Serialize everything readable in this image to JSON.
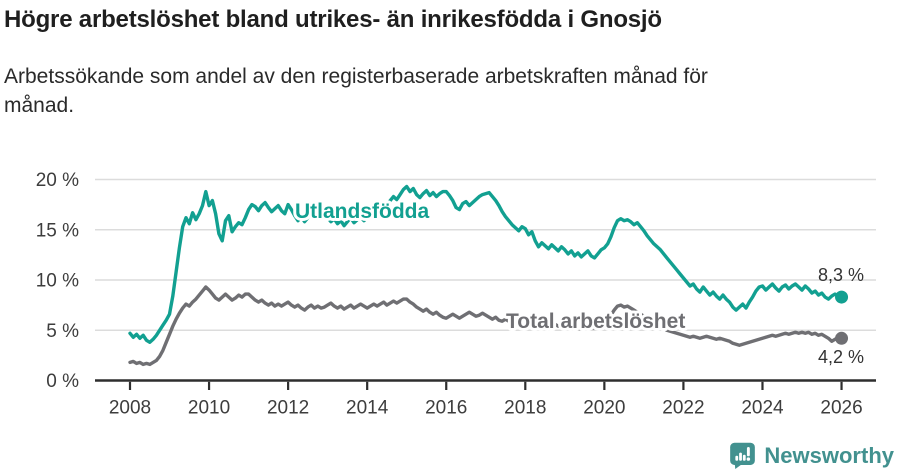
{
  "header": {
    "title": "Högre arbetslöshet bland utrikes- än inrikesfödda i Gnosjö",
    "subtitle_line1": "Arbetssökande som andel av den registerbaserade arbetskraften månad för",
    "subtitle_line2": "månad."
  },
  "footer": {
    "brand": "Newsworthy"
  },
  "colors": {
    "foreign_line": "#12A091",
    "total_line": "#6F6F73",
    "brand_teal": "#42918F",
    "grid": "#DCDCDC",
    "axis": "#2E2E2E",
    "tick_text": "#3D3D3D",
    "end_label_text": "#333333"
  },
  "chart_data": {
    "type": "line",
    "title": "Högre arbetslöshet bland utrikes- än inrikesfödda i Gnosjö",
    "subtitle": "Arbetssökande som andel av den registerbaserade arbetskraften månad för månad.",
    "x_unit": "year-month",
    "x_start_year": 2008,
    "x_end_year": 2026,
    "points_per_year": 12,
    "x_tick_labels": [
      "2008",
      "2010",
      "2012",
      "2014",
      "2016",
      "2018",
      "2020",
      "2022",
      "2024",
      "2026"
    ],
    "x_tick_years": [
      2008,
      2010,
      2012,
      2014,
      2016,
      2018,
      2020,
      2022,
      2024,
      2026
    ],
    "y_tick_labels": [
      "0 %",
      "5 %",
      "10 %",
      "15 %",
      "20 %"
    ],
    "y_tick_values": [
      0,
      5,
      10,
      15,
      20
    ],
    "ylim": [
      0,
      20
    ],
    "grid": true,
    "legend_position": "inline-labels",
    "series": [
      {
        "name": "Utlandsfödda",
        "color": "#12A091",
        "end_label": "8,3 %",
        "end_value": 8.3,
        "values": [
          4.7,
          4.3,
          4.6,
          4.2,
          4.5,
          4.0,
          3.8,
          4.1,
          4.5,
          5.0,
          5.5,
          6.0,
          6.6,
          8.4,
          10.8,
          13.2,
          15.3,
          16.2,
          15.6,
          16.7,
          16.0,
          16.6,
          17.4,
          18.8,
          17.4,
          17.9,
          16.6,
          14.6,
          13.9,
          15.9,
          16.4,
          14.8,
          15.3,
          15.7,
          15.5,
          16.2,
          17.0,
          17.5,
          17.3,
          16.9,
          17.4,
          17.7,
          17.2,
          16.8,
          17.1,
          17.4,
          16.9,
          16.6,
          17.5,
          17.0,
          16.4,
          15.9,
          16.3,
          15.8,
          16.2,
          16.6,
          16.1,
          16.5,
          17.0,
          16.6,
          16.2,
          15.8,
          16.1,
          15.6,
          15.9,
          15.4,
          15.8,
          16.2,
          15.7,
          16.0,
          16.3,
          15.9,
          16.2,
          16.6,
          17.0,
          16.7,
          17.2,
          17.7,
          17.4,
          17.9,
          18.3,
          18.0,
          18.5,
          19.0,
          19.3,
          18.8,
          19.1,
          18.5,
          18.2,
          18.6,
          18.9,
          18.4,
          18.7,
          18.3,
          18.6,
          18.8,
          18.8,
          18.4,
          17.9,
          17.2,
          17.0,
          17.6,
          17.8,
          17.4,
          17.7,
          18.0,
          18.3,
          18.5,
          18.6,
          18.7,
          18.3,
          17.9,
          17.4,
          16.8,
          16.3,
          15.9,
          15.5,
          15.2,
          14.9,
          15.3,
          15.1,
          14.5,
          14.8,
          13.9,
          13.3,
          13.7,
          13.4,
          13.1,
          13.5,
          13.2,
          12.9,
          13.3,
          13.0,
          12.6,
          12.9,
          12.4,
          12.7,
          12.3,
          12.6,
          12.9,
          12.4,
          12.2,
          12.6,
          13.0,
          13.2,
          13.6,
          14.3,
          15.2,
          15.9,
          16.1,
          15.9,
          16.0,
          15.8,
          15.5,
          15.7,
          15.3,
          14.9,
          14.4,
          14.0,
          13.6,
          13.3,
          13.0,
          12.6,
          12.2,
          11.8,
          11.4,
          11.0,
          10.6,
          10.2,
          9.8,
          9.4,
          9.6,
          9.1,
          8.8,
          9.3,
          8.9,
          8.5,
          8.8,
          8.4,
          8.1,
          8.5,
          8.1,
          7.8,
          7.3,
          7.0,
          7.3,
          7.6,
          7.2,
          7.8,
          8.3,
          8.9,
          9.3,
          9.4,
          9.0,
          9.3,
          9.6,
          9.2,
          8.9,
          9.3,
          9.5,
          9.1,
          9.4,
          9.6,
          9.3,
          9.0,
          9.4,
          9.1,
          8.7,
          8.9,
          8.5,
          8.7,
          8.3,
          8.1,
          8.4,
          8.6,
          8.4,
          8.3
        ]
      },
      {
        "name": "Total arbetslöshet",
        "color": "#6F6F73",
        "end_label": "4,2 %",
        "end_value": 4.2,
        "values": [
          1.8,
          1.9,
          1.7,
          1.8,
          1.6,
          1.7,
          1.6,
          1.8,
          2.0,
          2.4,
          3.0,
          3.8,
          4.6,
          5.4,
          6.1,
          6.7,
          7.2,
          7.6,
          7.4,
          7.8,
          8.1,
          8.5,
          8.9,
          9.3,
          9.0,
          8.6,
          8.2,
          8.0,
          8.3,
          8.6,
          8.3,
          8.0,
          8.2,
          8.5,
          8.3,
          8.6,
          8.6,
          8.3,
          8.0,
          7.8,
          8.0,
          7.7,
          7.5,
          7.7,
          7.4,
          7.6,
          7.4,
          7.6,
          7.8,
          7.5,
          7.3,
          7.5,
          7.2,
          7.0,
          7.3,
          7.5,
          7.2,
          7.4,
          7.2,
          7.3,
          7.5,
          7.7,
          7.4,
          7.2,
          7.4,
          7.1,
          7.3,
          7.5,
          7.2,
          7.4,
          7.6,
          7.4,
          7.2,
          7.4,
          7.6,
          7.4,
          7.6,
          7.8,
          7.5,
          7.7,
          7.9,
          7.7,
          7.9,
          8.1,
          8.1,
          7.8,
          7.6,
          7.3,
          7.1,
          6.9,
          7.1,
          6.8,
          6.6,
          6.8,
          6.5,
          6.3,
          6.2,
          6.4,
          6.6,
          6.4,
          6.2,
          6.4,
          6.6,
          6.8,
          6.6,
          6.4,
          6.5,
          6.7,
          6.5,
          6.3,
          6.1,
          6.3,
          6.0,
          5.9,
          6.1,
          5.9,
          5.8,
          6.0,
          6.1,
          5.9,
          6.2,
          6.0,
          5.8,
          5.9,
          5.7,
          5.5,
          5.7,
          5.5,
          5.4,
          5.6,
          5.4,
          5.5,
          5.6,
          5.4,
          5.2,
          5.4,
          5.2,
          5.1,
          5.3,
          5.5,
          5.3,
          5.2,
          5.4,
          5.6,
          5.8,
          6.0,
          6.5,
          7.0,
          7.4,
          7.5,
          7.3,
          7.4,
          7.2,
          7.0,
          6.8,
          6.6,
          6.4,
          6.2,
          6.0,
          5.8,
          5.6,
          5.4,
          5.2,
          5.0,
          4.9,
          4.8,
          4.7,
          4.6,
          4.5,
          4.4,
          4.3,
          4.4,
          4.3,
          4.2,
          4.3,
          4.4,
          4.3,
          4.2,
          4.1,
          4.2,
          4.1,
          4.0,
          3.9,
          3.7,
          3.6,
          3.5,
          3.6,
          3.7,
          3.8,
          3.9,
          4.0,
          4.1,
          4.2,
          4.3,
          4.4,
          4.5,
          4.4,
          4.5,
          4.6,
          4.7,
          4.6,
          4.7,
          4.8,
          4.7,
          4.8,
          4.7,
          4.8,
          4.6,
          4.7,
          4.5,
          4.6,
          4.4,
          4.2,
          3.9,
          4.1,
          4.3,
          4.2
        ]
      }
    ]
  }
}
